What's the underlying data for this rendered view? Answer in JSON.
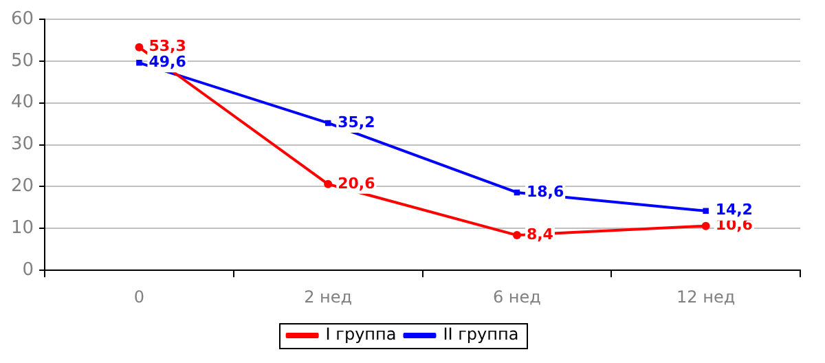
{
  "chart_data": {
    "type": "line",
    "categories": [
      "0",
      "2 нед",
      "6 нед",
      "12 нед"
    ],
    "series": [
      {
        "name": "I группа",
        "color": "#ff0000",
        "marker": "circle",
        "values": [
          53.3,
          20.6,
          8.4,
          10.6
        ],
        "value_labels": [
          "53,3",
          "20,6",
          "8,4",
          "10,6"
        ]
      },
      {
        "name": "II группа",
        "color": "#0000ff",
        "marker": "square",
        "values": [
          49.6,
          35.2,
          18.6,
          14.2
        ],
        "value_labels": [
          "49,6",
          "35,2",
          "18,6",
          "14,2"
        ]
      }
    ],
    "ylim": [
      0,
      60
    ],
    "yticks": [
      0,
      10,
      20,
      30,
      40,
      50,
      60
    ],
    "grid": "y",
    "legend": "bottom"
  }
}
